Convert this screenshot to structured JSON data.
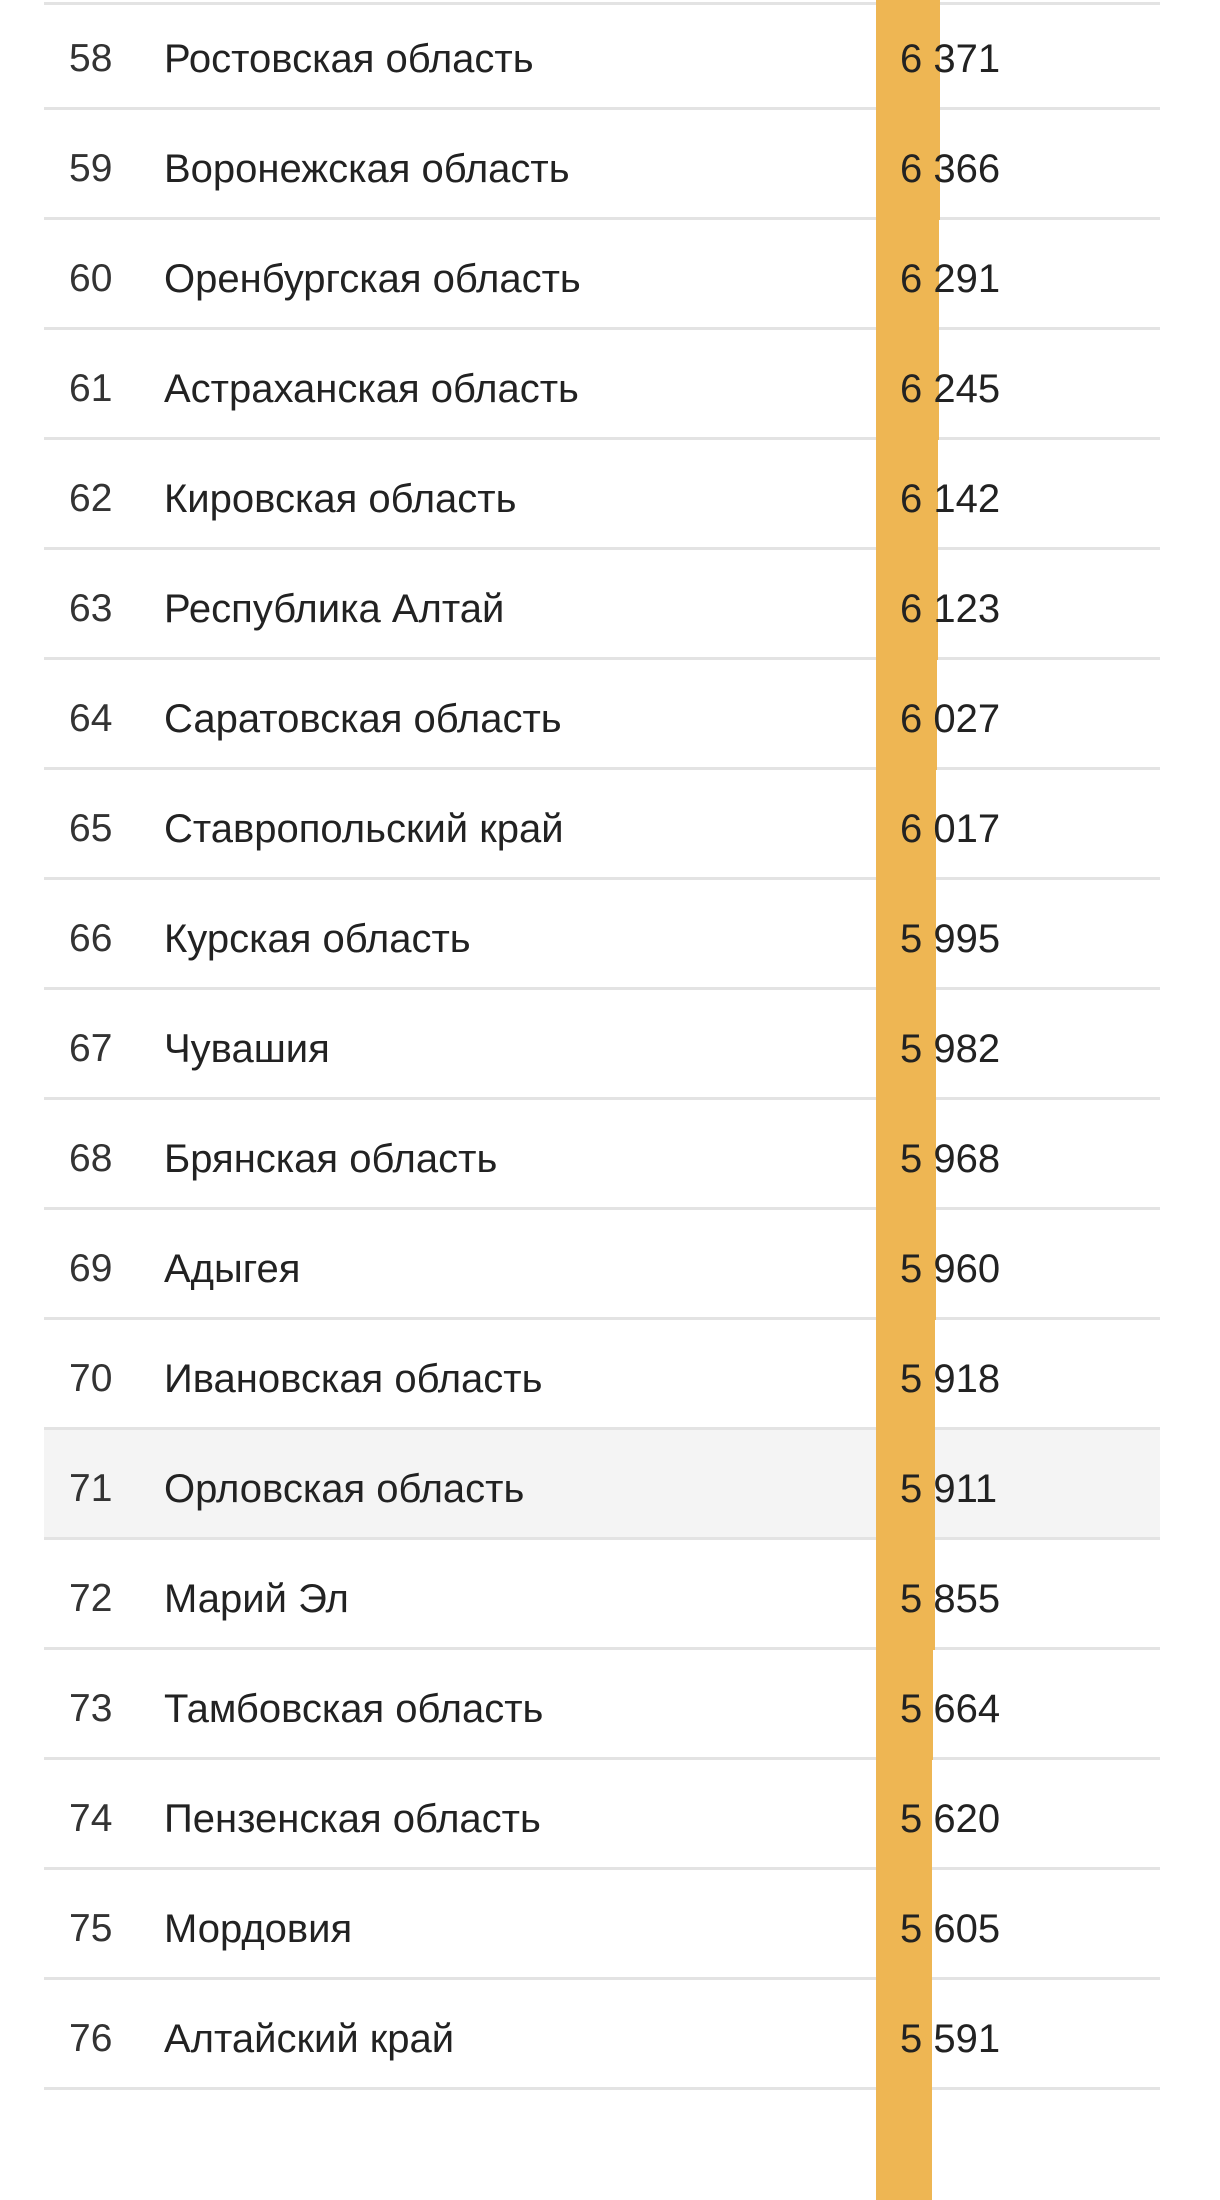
{
  "table": {
    "accent_color": "#eeb653",
    "highlight_color": "#f4f4f4",
    "bar_max_value": 6371,
    "rows": [
      {
        "rank": "58",
        "region": "Ростовская область",
        "value": "6 371",
        "numeric": 6371
      },
      {
        "rank": "59",
        "region": "Воронежская область",
        "value": "6 366",
        "numeric": 6366
      },
      {
        "rank": "60",
        "region": "Оренбургская область",
        "value": "6 291",
        "numeric": 6291
      },
      {
        "rank": "61",
        "region": "Астраханская область",
        "value": "6 245",
        "numeric": 6245
      },
      {
        "rank": "62",
        "region": "Кировская область",
        "value": "6 142",
        "numeric": 6142
      },
      {
        "rank": "63",
        "region": "Республика Алтай",
        "value": "6 123",
        "numeric": 6123
      },
      {
        "rank": "64",
        "region": "Саратовская область",
        "value": "6 027",
        "numeric": 6027
      },
      {
        "rank": "65",
        "region": "Ставропольский край",
        "value": "6 017",
        "numeric": 6017
      },
      {
        "rank": "66",
        "region": "Курская область",
        "value": "5 995",
        "numeric": 5995
      },
      {
        "rank": "67",
        "region": "Чувашия",
        "value": "5 982",
        "numeric": 5982
      },
      {
        "rank": "68",
        "region": "Брянская область",
        "value": "5 968",
        "numeric": 5968
      },
      {
        "rank": "69",
        "region": "Адыгея",
        "value": "5 960",
        "numeric": 5960
      },
      {
        "rank": "70",
        "region": "Ивановская область",
        "value": "5 918",
        "numeric": 5918
      },
      {
        "rank": "71",
        "region": "Орловская область",
        "value": "5 911",
        "numeric": 5911,
        "highlighted": true
      },
      {
        "rank": "72",
        "region": "Марий Эл",
        "value": "5 855",
        "numeric": 5855
      },
      {
        "rank": "73",
        "region": "Тамбовская область",
        "value": "5 664",
        "numeric": 5664
      },
      {
        "rank": "74",
        "region": "Пензенская область",
        "value": "5 620",
        "numeric": 5620
      },
      {
        "rank": "75",
        "region": "Мордовия",
        "value": "5 605",
        "numeric": 5605
      },
      {
        "rank": "76",
        "region": "Алтайский край",
        "value": "5 591",
        "numeric": 5591
      }
    ]
  }
}
